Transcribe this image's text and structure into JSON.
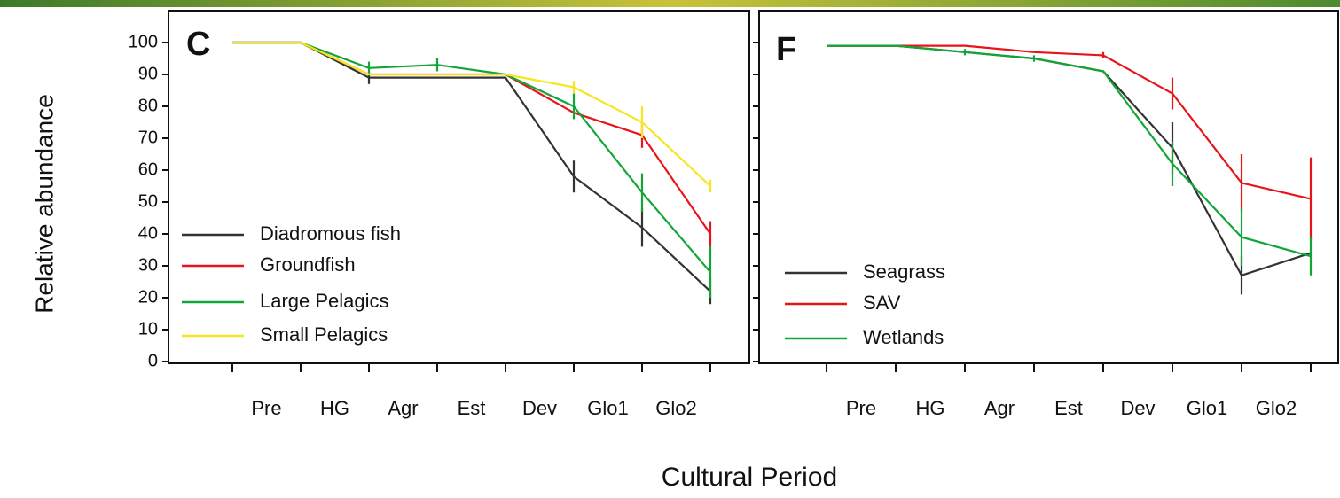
{
  "chart_data": [
    {
      "type": "line",
      "panel": "C",
      "ylabel": "Relative abundance",
      "categories": [
        "Pre",
        "HG",
        "Agr",
        "Est",
        "Dev",
        "Glo1",
        "Glo2",
        null
      ],
      "ylim": [
        0,
        100
      ],
      "yticks": [
        0,
        10,
        20,
        30,
        40,
        50,
        60,
        70,
        80,
        90,
        100
      ],
      "show_ytick_labels": true,
      "legend": "lower left",
      "series": [
        {
          "name": "Diadromous fish",
          "color": "#333333",
          "values": [
            100,
            100,
            89,
            89,
            89,
            58,
            42,
            22
          ],
          "errors": [
            null,
            null,
            2,
            null,
            null,
            5,
            6,
            4
          ]
        },
        {
          "name": "Groundfish",
          "color": "#e8141c",
          "values": [
            100,
            100,
            90,
            90,
            90,
            78,
            71,
            40
          ],
          "errors": [
            null,
            null,
            null,
            null,
            null,
            null,
            4,
            4
          ]
        },
        {
          "name": "Large Pelagics",
          "color": "#12a538",
          "values": [
            100,
            100,
            92,
            93,
            90,
            80,
            53,
            28
          ],
          "errors": [
            null,
            null,
            2,
            2,
            null,
            4,
            6,
            8
          ]
        },
        {
          "name": "Small Pelagics",
          "color": "#f5e61e",
          "values": [
            100,
            100,
            90,
            90,
            90,
            86,
            75,
            55
          ],
          "errors": [
            null,
            null,
            null,
            null,
            null,
            2,
            5,
            2
          ]
        }
      ]
    },
    {
      "type": "line",
      "panel": "F",
      "categories": [
        "Pre",
        "HG",
        "Agr",
        "Est",
        "Dev",
        "Glo1",
        "Glo2",
        null
      ],
      "ylim": [
        0,
        100
      ],
      "yticks": [
        0,
        10,
        20,
        30,
        40,
        50,
        60,
        70,
        80,
        90,
        100
      ],
      "show_ytick_labels": false,
      "legend": "lower left",
      "series": [
        {
          "name": "Seagrass",
          "color": "#333333",
          "values": [
            99,
            99,
            97,
            95,
            91,
            67,
            27,
            34
          ],
          "errors": [
            null,
            null,
            null,
            null,
            null,
            8,
            6,
            null
          ]
        },
        {
          "name": "SAV",
          "color": "#e8141c",
          "values": [
            99,
            99,
            99,
            97,
            96,
            84,
            56,
            51
          ],
          "errors": [
            null,
            null,
            null,
            null,
            1,
            5,
            9,
            13
          ]
        },
        {
          "name": "Wetlands",
          "color": "#12a538",
          "values": [
            99,
            99,
            97,
            95,
            91,
            62,
            39,
            33
          ],
          "errors": [
            null,
            null,
            1,
            1,
            null,
            7,
            9,
            6
          ]
        }
      ]
    }
  ],
  "xlabel": "Cultural Period"
}
